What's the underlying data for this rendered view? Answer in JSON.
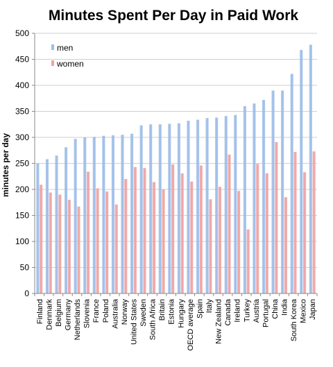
{
  "chart_data": {
    "type": "bar",
    "title": "Minutes Spent Per Day in Paid Work",
    "subtitle": "",
    "xlabel": "",
    "ylabel": "minutes per day",
    "ylim": [
      0,
      500
    ],
    "yticks": [
      0,
      50,
      100,
      150,
      200,
      250,
      300,
      350,
      400,
      450,
      500
    ],
    "grid": true,
    "legend_position": "top-left",
    "categories": [
      "Finland",
      "Denmark",
      "Belgium",
      "Germany",
      "Netherlands",
      "Slovenia",
      "France",
      "Poland",
      "Australia",
      "Norway",
      "United States",
      "Sweden",
      "South Africa",
      "Britain",
      "Estonia",
      "Hungary",
      "OECD average",
      "Spain",
      "Italy",
      "New Zealand",
      "Canada",
      "Ireland",
      "Turkey",
      "Austria",
      "Portugal",
      "China",
      "India",
      "South Korea",
      "Mexico",
      "Japan"
    ],
    "series": [
      {
        "name": "men",
        "color": "#9dbde8",
        "values": [
          250,
          258,
          265,
          281,
          297,
          300,
          301,
          303,
          304,
          305,
          307,
          323,
          325,
          325,
          326,
          327,
          332,
          334,
          337,
          338,
          341,
          343,
          360,
          365,
          372,
          390,
          390,
          422,
          468,
          478
        ]
      },
      {
        "name": "women",
        "color": "#eea3a3",
        "values": [
          209,
          194,
          190,
          180,
          167,
          234,
          202,
          196,
          171,
          220,
          243,
          241,
          214,
          200,
          248,
          231,
          215,
          246,
          181,
          205,
          267,
          197,
          123,
          249,
          231,
          291,
          185,
          272,
          233,
          273
        ]
      }
    ]
  }
}
